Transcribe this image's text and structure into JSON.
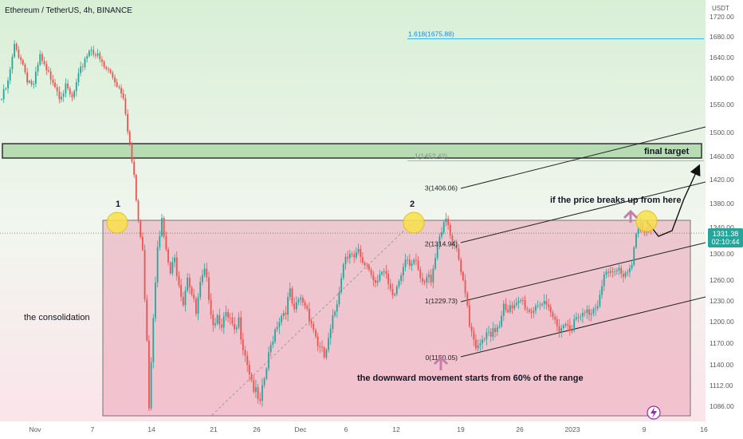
{
  "header": {
    "symbol_title": "Ethereum / TetherUS, 4h, BINANCE",
    "currency": "USDT"
  },
  "colors": {
    "up_candle": "#26a69a",
    "down_candle": "#ef5350",
    "zone_fill": "#e9b7c3",
    "resistance_fill": "#b7dcb4",
    "fib_line": "#29b6f6",
    "price_badge": "#26a69a"
  },
  "chart_data": {
    "type": "candlestick",
    "ylim": [
      1060,
      1730
    ],
    "y_ticks": [
      1720,
      1680,
      1640,
      1600,
      1550,
      1500,
      1460,
      1420,
      1380,
      1340,
      1300,
      1260,
      1230,
      1200,
      1170,
      1140,
      1112,
      1086
    ],
    "y_tick_labels": [
      "1720.00",
      "1680.00",
      "1640.00",
      "1600.00",
      "1550.00",
      "1500.00",
      "1460.00",
      "1420.00",
      "1380.00",
      "1340.00",
      "1300.00",
      "1260.00",
      "1230.00",
      "1200.00",
      "1170.00",
      "1140.00",
      "1112.00",
      "1086.00"
    ],
    "x_ticks": [
      "Nov",
      "7",
      "14",
      "21",
      "26",
      "Dec",
      "6",
      "12",
      "19",
      "26",
      "2023",
      "9",
      "16"
    ],
    "current_price": "1331.38",
    "countdown": "02:10:44",
    "fib_levels": [
      {
        "label": "1.618(1675.88)",
        "value": 1675.88
      },
      {
        "label": "1(1452.42)",
        "value": 1452.42
      },
      {
        "label": "3(1406.06)",
        "value": 1406.06
      },
      {
        "label": "2(1314.94)",
        "value": 1314.94
      },
      {
        "label": "1(1229.73)",
        "value": 1229.73
      },
      {
        "label": "0(1150.05)",
        "value": 1150.05
      }
    ],
    "zones": {
      "consolidation": {
        "top": 1353,
        "bottom": 1078
      },
      "resistance": {
        "top": 1480,
        "bottom": 1455
      }
    },
    "price_path": [
      [
        0,
        1560
      ],
      [
        3,
        1590
      ],
      [
        6,
        1660
      ],
      [
        9,
        1640
      ],
      [
        12,
        1600
      ],
      [
        15,
        1585
      ],
      [
        18,
        1640
      ],
      [
        21,
        1610
      ],
      [
        24,
        1600
      ],
      [
        27,
        1570
      ],
      [
        30,
        1580
      ],
      [
        33,
        1560
      ],
      [
        36,
        1600
      ],
      [
        39,
        1640
      ],
      [
        42,
        1660
      ],
      [
        45,
        1640
      ],
      [
        48,
        1620
      ],
      [
        51,
        1610
      ],
      [
        54,
        1590
      ],
      [
        57,
        1570
      ],
      [
        60,
        1480
      ],
      [
        62,
        1420
      ],
      [
        64,
        1350
      ],
      [
        66,
        1300
      ],
      [
        68,
        1180
      ],
      [
        69,
        1090
      ],
      [
        71,
        1210
      ],
      [
        73,
        1320
      ],
      [
        75,
        1350
      ],
      [
        77,
        1300
      ],
      [
        79,
        1270
      ],
      [
        81,
        1290
      ],
      [
        83,
        1260
      ],
      [
        85,
        1230
      ],
      [
        87,
        1270
      ],
      [
        89,
        1240
      ],
      [
        91,
        1210
      ],
      [
        93,
        1250
      ],
      [
        95,
        1270
      ],
      [
        97,
        1240
      ],
      [
        99,
        1200
      ],
      [
        101,
        1210
      ],
      [
        103,
        1200
      ],
      [
        105,
        1205
      ],
      [
        107,
        1200
      ],
      [
        109,
        1180
      ],
      [
        111,
        1200
      ],
      [
        113,
        1170
      ],
      [
        115,
        1145
      ],
      [
        117,
        1120
      ],
      [
        119,
        1100
      ],
      [
        121,
        1085
      ],
      [
        123,
        1120
      ],
      [
        125,
        1150
      ],
      [
        127,
        1180
      ],
      [
        129,
        1200
      ],
      [
        131,
        1210
      ],
      [
        133,
        1220
      ],
      [
        135,
        1240
      ],
      [
        137,
        1210
      ],
      [
        139,
        1230
      ],
      [
        141,
        1230
      ],
      [
        143,
        1220
      ],
      [
        145,
        1200
      ],
      [
        147,
        1180
      ],
      [
        149,
        1160
      ],
      [
        151,
        1150
      ],
      [
        153,
        1170
      ],
      [
        155,
        1200
      ],
      [
        157,
        1230
      ],
      [
        159,
        1270
      ],
      [
        161,
        1300
      ],
      [
        163,
        1305
      ],
      [
        165,
        1290
      ],
      [
        167,
        1300
      ],
      [
        169,
        1280
      ],
      [
        171,
        1285
      ],
      [
        173,
        1270
      ],
      [
        175,
        1260
      ],
      [
        177,
        1275
      ],
      [
        179,
        1270
      ],
      [
        181,
        1250
      ],
      [
        183,
        1230
      ],
      [
        185,
        1250
      ],
      [
        187,
        1270
      ],
      [
        189,
        1300
      ],
      [
        191,
        1290
      ],
      [
        193,
        1290
      ],
      [
        195,
        1270
      ],
      [
        197,
        1250
      ],
      [
        199,
        1260
      ],
      [
        201,
        1265
      ],
      [
        203,
        1300
      ],
      [
        205,
        1330
      ],
      [
        207,
        1350
      ],
      [
        209,
        1340
      ],
      [
        211,
        1310
      ],
      [
        213,
        1300
      ],
      [
        215,
        1270
      ],
      [
        217,
        1250
      ],
      [
        219,
        1200
      ],
      [
        221,
        1180
      ],
      [
        223,
        1160
      ],
      [
        225,
        1170
      ],
      [
        227,
        1180
      ],
      [
        229,
        1175
      ],
      [
        231,
        1190
      ],
      [
        233,
        1200
      ],
      [
        235,
        1230
      ],
      [
        237,
        1220
      ],
      [
        239,
        1215
      ],
      [
        241,
        1220
      ],
      [
        243,
        1230
      ],
      [
        245,
        1225
      ],
      [
        247,
        1215
      ],
      [
        249,
        1220
      ],
      [
        251,
        1230
      ],
      [
        253,
        1225
      ],
      [
        255,
        1215
      ],
      [
        257,
        1210
      ],
      [
        259,
        1200
      ],
      [
        261,
        1195
      ],
      [
        263,
        1195
      ],
      [
        265,
        1200
      ],
      [
        267,
        1195
      ],
      [
        269,
        1200
      ],
      [
        271,
        1205
      ],
      [
        273,
        1210
      ],
      [
        275,
        1215
      ],
      [
        277,
        1220
      ],
      [
        279,
        1230
      ],
      [
        281,
        1260
      ],
      [
        283,
        1270
      ],
      [
        285,
        1265
      ],
      [
        287,
        1270
      ],
      [
        289,
        1275
      ],
      [
        291,
        1270
      ],
      [
        293,
        1275
      ],
      [
        295,
        1290
      ],
      [
        297,
        1330
      ],
      [
        299,
        1340
      ],
      [
        301,
        1330
      ],
      [
        303,
        1335
      ],
      [
        305,
        1331
      ]
    ]
  },
  "annotations": {
    "touch_1": "1",
    "touch_2": "2",
    "consolidation": "the consolidation",
    "final_target": "final target",
    "breakout": "if the price breaks up from here",
    "downward": "the downward movement starts from 60% of the range"
  }
}
